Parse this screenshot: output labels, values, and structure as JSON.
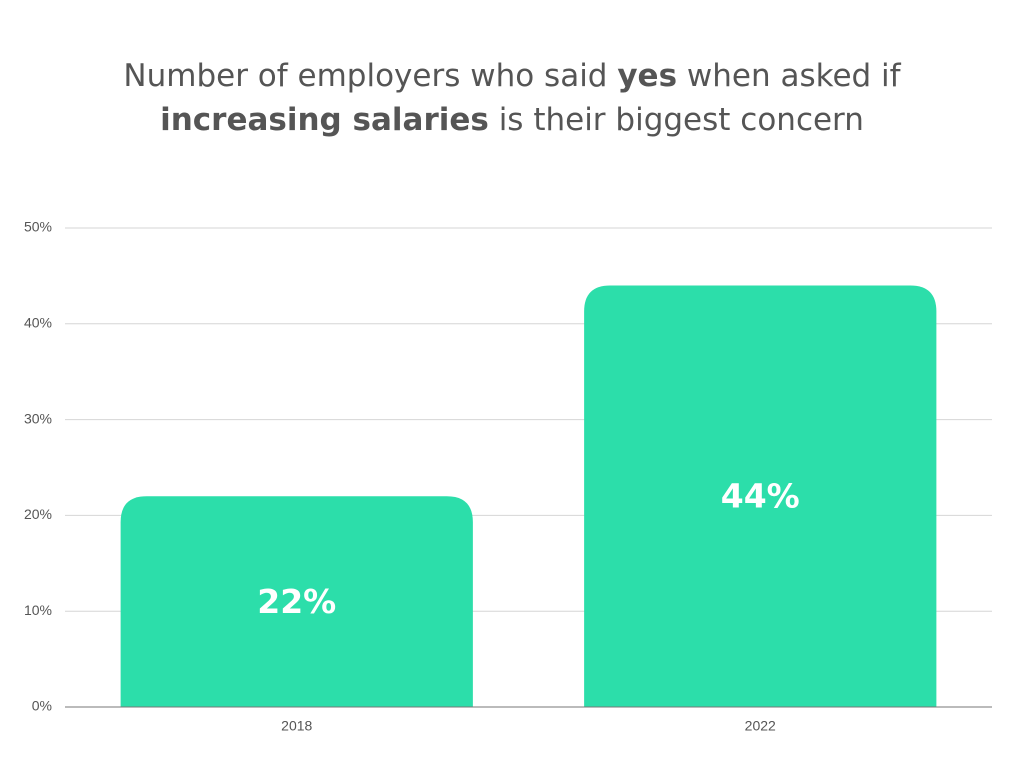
{
  "chart_data": {
    "type": "bar",
    "title_lines": [
      [
        {
          "text": "Number of employers who said ",
          "bold": false
        },
        {
          "text": "yes",
          "bold": true
        },
        {
          "text": " when asked if",
          "bold": false
        }
      ],
      [
        {
          "text": "increasing salaries",
          "bold": true
        },
        {
          "text": " is their biggest concern",
          "bold": false
        }
      ]
    ],
    "categories": [
      "2018",
      "2022"
    ],
    "values": [
      22,
      44
    ],
    "value_labels": [
      "22%",
      "44%"
    ],
    "color": "#2cdeaa",
    "ylim": [
      0,
      50
    ],
    "yticks": [
      {
        "value": 0,
        "label": "0%"
      },
      {
        "value": 10,
        "label": "10%"
      },
      {
        "value": 20,
        "label": "20%"
      },
      {
        "value": 30,
        "label": "30%"
      },
      {
        "value": 40,
        "label": "40%"
      },
      {
        "value": 50,
        "label": "50%"
      }
    ],
    "grid": true
  }
}
